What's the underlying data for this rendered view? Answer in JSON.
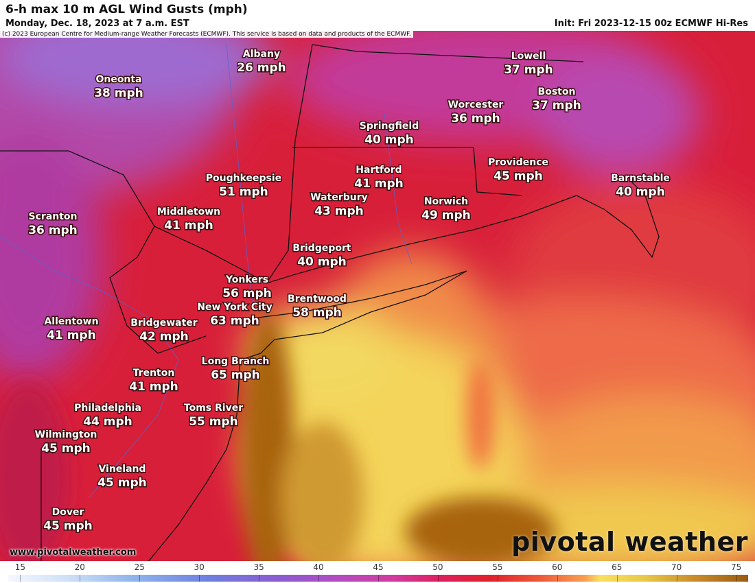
{
  "header": {
    "title": "6-h max 10 m AGL Wind Gusts (mph)",
    "subtitle": "Monday, Dec. 18, 2023 at 7 a.m. EST",
    "init": "Init: Fri 2023-12-15 00z ECMWF Hi-Res",
    "copyright": "(c) 2023 European Centre for Medium-range Weather Forecasts (ECMWF). This service is based on data and products of the ECMWF."
  },
  "cities": [
    {
      "name": "Albany",
      "label": "26 mph"
    },
    {
      "name": "Oneonta",
      "label": "38 mph"
    },
    {
      "name": "Lowell",
      "label": "37 mph"
    },
    {
      "name": "Boston",
      "label": "37 mph"
    },
    {
      "name": "Worcester",
      "label": "36 mph"
    },
    {
      "name": "Springfield",
      "label": "40 mph"
    },
    {
      "name": "Providence",
      "label": "45 mph"
    },
    {
      "name": "Barnstable",
      "label": "40 mph"
    },
    {
      "name": "Poughkeepsie",
      "label": "51 mph"
    },
    {
      "name": "Hartford",
      "label": "41 mph"
    },
    {
      "name": "Waterbury",
      "label": "43 mph"
    },
    {
      "name": "Norwich",
      "label": "49 mph"
    },
    {
      "name": "Scranton",
      "label": "36 mph"
    },
    {
      "name": "Middletown",
      "label": "41 mph"
    },
    {
      "name": "Bridgeport",
      "label": "40 mph"
    },
    {
      "name": "Yonkers",
      "label": "56 mph"
    },
    {
      "name": "Brentwood",
      "label": "58 mph"
    },
    {
      "name": "New York City",
      "label": "63 mph"
    },
    {
      "name": "Allentown",
      "label": "41 mph"
    },
    {
      "name": "Bridgewater",
      "label": "42 mph"
    },
    {
      "name": "Long Branch",
      "label": "65 mph"
    },
    {
      "name": "Trenton",
      "label": "41 mph"
    },
    {
      "name": "Philadelphia",
      "label": "44 mph"
    },
    {
      "name": "Toms River",
      "label": "55 mph"
    },
    {
      "name": "Wilmington",
      "label": "45 mph"
    },
    {
      "name": "Vineland",
      "label": "45 mph"
    },
    {
      "name": "Dover",
      "label": "45 mph"
    }
  ],
  "colorbar": {
    "range": [
      14,
      76
    ],
    "ticks": [
      15,
      20,
      25,
      30,
      35,
      40,
      45,
      50,
      55,
      60,
      65,
      70,
      75
    ]
  },
  "footer": {
    "url": "www.pivotalweather.com",
    "brand": "pivotal weather"
  }
}
